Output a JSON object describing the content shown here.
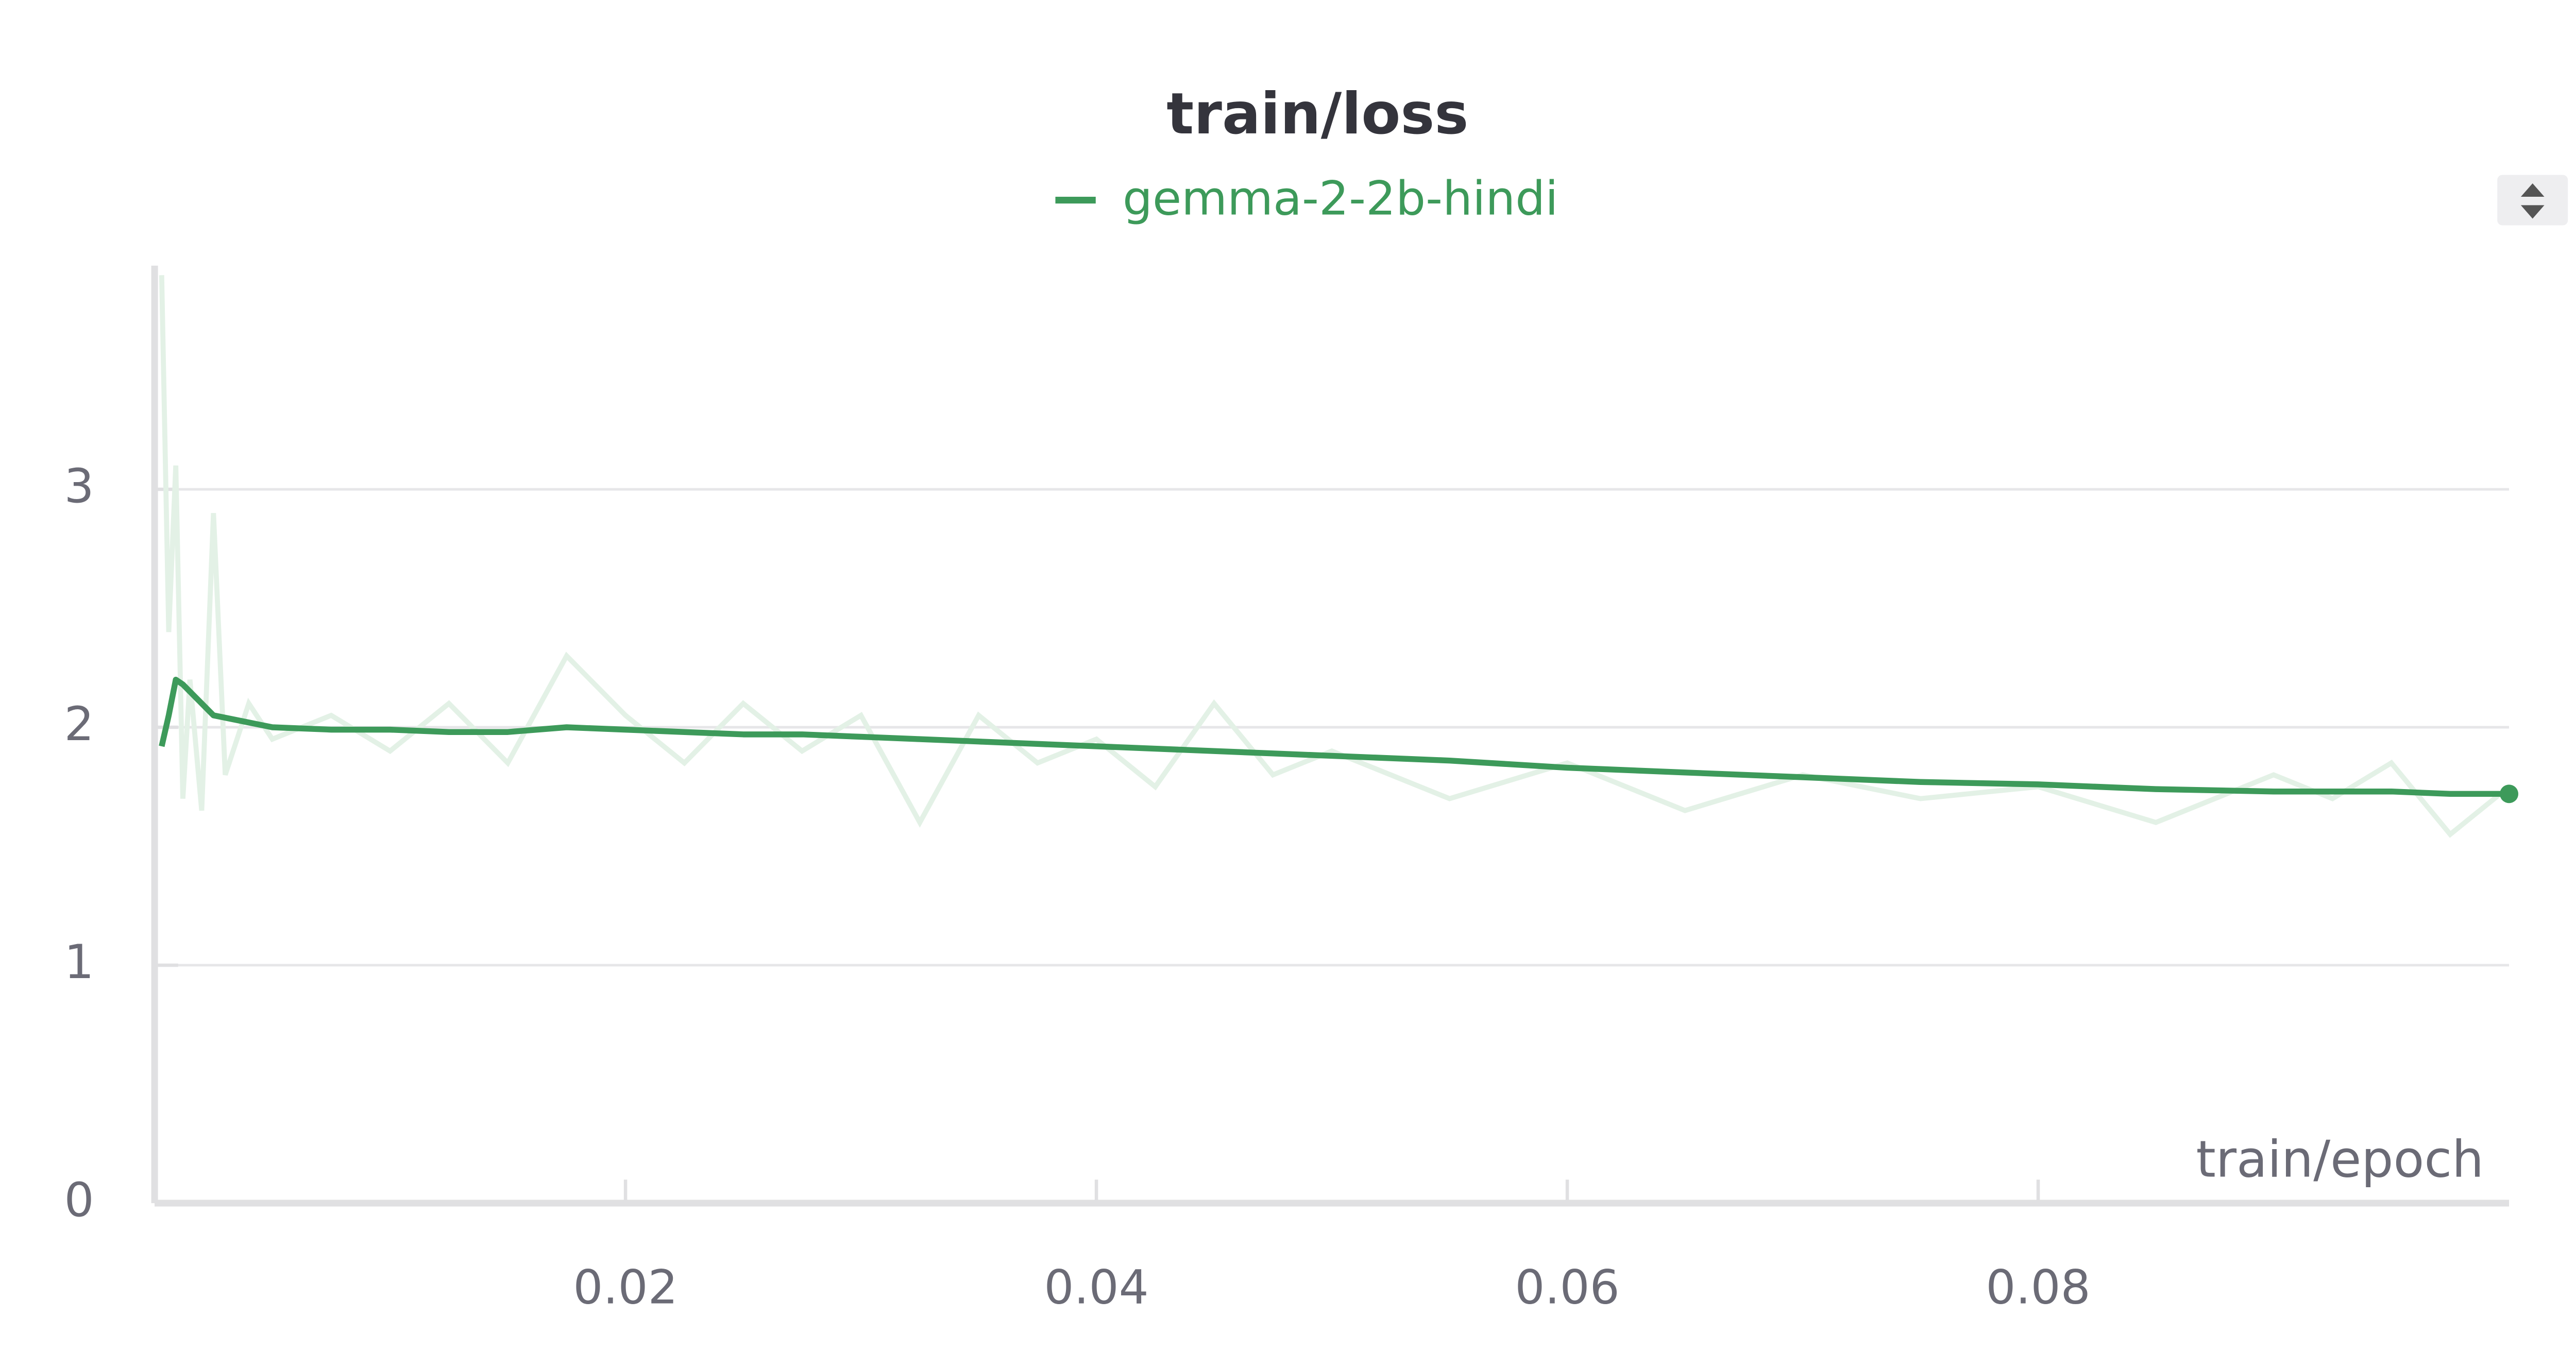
{
  "chart_data": {
    "type": "line",
    "title": "train/loss",
    "x_label": "train/epoch",
    "x": [
      0.0003,
      0.0006,
      0.0009,
      0.0012,
      0.0015,
      0.002,
      0.0025,
      0.003,
      0.004,
      0.005,
      0.0075,
      0.01,
      0.0125,
      0.015,
      0.0175,
      0.02,
      0.0225,
      0.025,
      0.0275,
      0.03,
      0.0325,
      0.035,
      0.0375,
      0.04,
      0.0425,
      0.045,
      0.0475,
      0.05,
      0.055,
      0.06,
      0.065,
      0.07,
      0.075,
      0.08,
      0.085,
      0.09,
      0.0925,
      0.095,
      0.0975,
      0.1
    ],
    "series": [
      {
        "name": "gemma-2-2b-hindi",
        "color": "#3d9a5a",
        "values": [
          1.92,
          2.05,
          2.2,
          2.18,
          2.15,
          2.1,
          2.05,
          2.04,
          2.02,
          2.0,
          1.99,
          1.99,
          1.98,
          1.98,
          2.0,
          1.99,
          1.98,
          1.97,
          1.97,
          1.96,
          1.95,
          1.94,
          1.93,
          1.92,
          1.91,
          1.9,
          1.89,
          1.88,
          1.86,
          1.83,
          1.81,
          1.79,
          1.77,
          1.76,
          1.74,
          1.73,
          1.73,
          1.73,
          1.72,
          1.72
        ],
        "raw_values": [
          3.9,
          2.4,
          3.1,
          1.7,
          2.2,
          1.65,
          2.9,
          1.8,
          2.1,
          1.95,
          2.05,
          1.9,
          2.1,
          1.85,
          2.3,
          2.05,
          1.85,
          2.1,
          1.9,
          2.05,
          1.6,
          2.05,
          1.85,
          1.95,
          1.75,
          2.1,
          1.8,
          1.9,
          1.7,
          1.85,
          1.65,
          1.8,
          1.7,
          1.75,
          1.6,
          1.8,
          1.7,
          1.85,
          1.55,
          1.75
        ],
        "raw_color": "#e3f1e6"
      }
    ],
    "xlim": [
      0,
      0.1
    ],
    "ylim": [
      0,
      3.94
    ],
    "xticks": [
      0.02,
      0.04,
      0.06,
      0.08
    ],
    "yticks": [
      0,
      1,
      2,
      3
    ],
    "grid": true
  }
}
